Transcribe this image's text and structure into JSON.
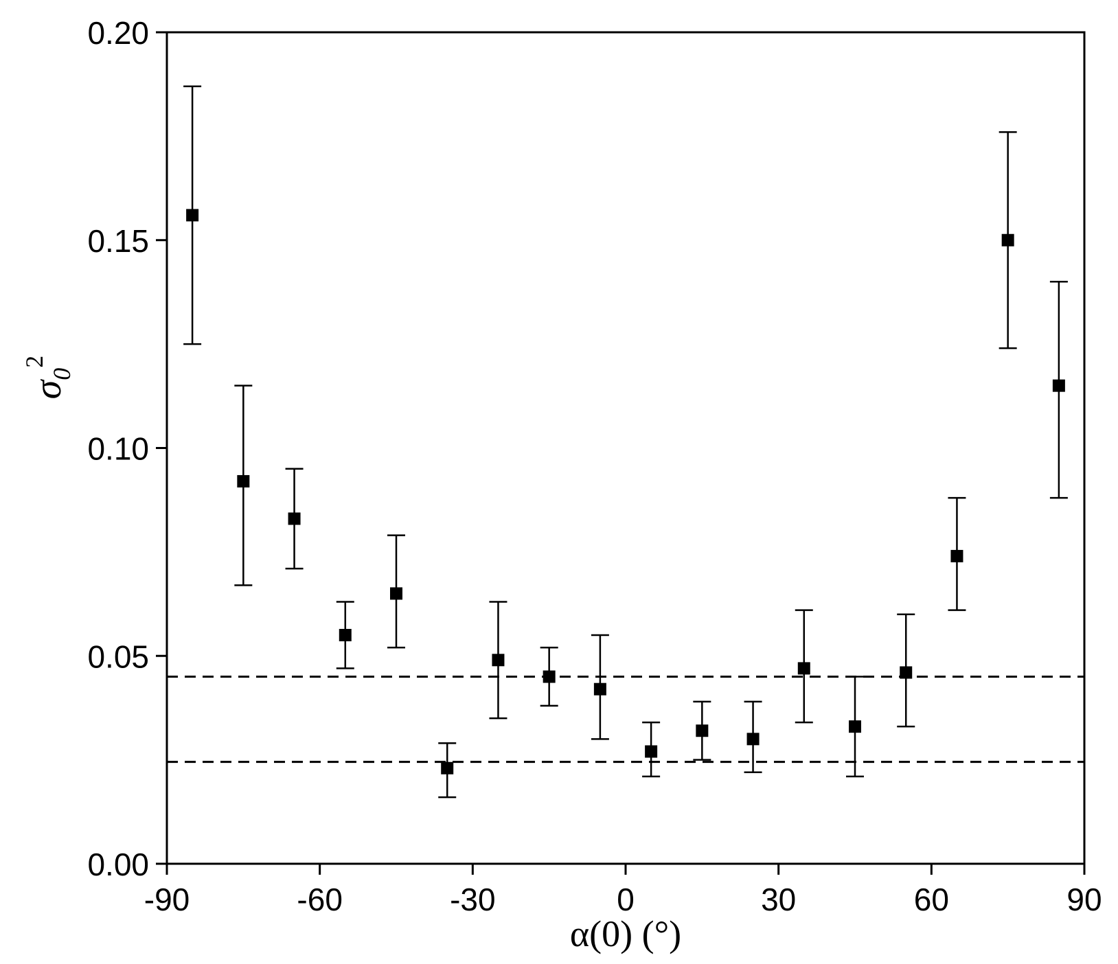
{
  "chart_data": {
    "type": "scatter",
    "xlabel": "α(0) (°)",
    "ylabel": {
      "symbol": "σ",
      "subscript": "0",
      "superscript": "2"
    },
    "xlim": [
      -90,
      90
    ],
    "ylim": [
      0,
      0.2
    ],
    "x_ticks": [
      -90,
      -60,
      -30,
      0,
      30,
      60,
      90
    ],
    "x_tick_labels": [
      "-90",
      "-60",
      "-30",
      "0",
      "30",
      "60",
      "90"
    ],
    "y_ticks": [
      0,
      0.05,
      0.1,
      0.15,
      0.2
    ],
    "y_tick_labels": [
      "0.00",
      "0.05",
      "0.10",
      "0.15",
      "0.20"
    ],
    "grid": false,
    "marker": "filled-square",
    "series": [
      {
        "points": [
          {
            "x": -85,
            "y": 0.156,
            "err_low": 0.125,
            "err_high": 0.187
          },
          {
            "x": -75,
            "y": 0.092,
            "err_low": 0.067,
            "err_high": 0.115
          },
          {
            "x": -65,
            "y": 0.083,
            "err_low": 0.071,
            "err_high": 0.095
          },
          {
            "x": -55,
            "y": 0.055,
            "err_low": 0.047,
            "err_high": 0.063
          },
          {
            "x": -45,
            "y": 0.065,
            "err_low": 0.052,
            "err_high": 0.079
          },
          {
            "x": -35,
            "y": 0.023,
            "err_low": 0.016,
            "err_high": 0.029
          },
          {
            "x": -25,
            "y": 0.049,
            "err_low": 0.035,
            "err_high": 0.063
          },
          {
            "x": -15,
            "y": 0.045,
            "err_low": 0.038,
            "err_high": 0.052
          },
          {
            "x": -5,
            "y": 0.042,
            "err_low": 0.03,
            "err_high": 0.055
          },
          {
            "x": 5,
            "y": 0.027,
            "err_low": 0.021,
            "err_high": 0.034
          },
          {
            "x": 15,
            "y": 0.032,
            "err_low": 0.025,
            "err_high": 0.039
          },
          {
            "x": 25,
            "y": 0.03,
            "err_low": 0.022,
            "err_high": 0.039
          },
          {
            "x": 35,
            "y": 0.047,
            "err_low": 0.034,
            "err_high": 0.061
          },
          {
            "x": 45,
            "y": 0.033,
            "err_low": 0.021,
            "err_high": 0.045
          },
          {
            "x": 55,
            "y": 0.046,
            "err_low": 0.033,
            "err_high": 0.06
          },
          {
            "x": 65,
            "y": 0.074,
            "err_low": 0.061,
            "err_high": 0.088
          },
          {
            "x": 75,
            "y": 0.15,
            "err_low": 0.124,
            "err_high": 0.176
          },
          {
            "x": 85,
            "y": 0.115,
            "err_low": 0.088,
            "err_high": 0.14
          }
        ]
      }
    ],
    "reference_lines": [
      {
        "orientation": "horizontal",
        "y": 0.045,
        "style": "dashed"
      },
      {
        "orientation": "horizontal",
        "y": 0.0245,
        "style": "dashed"
      }
    ]
  }
}
